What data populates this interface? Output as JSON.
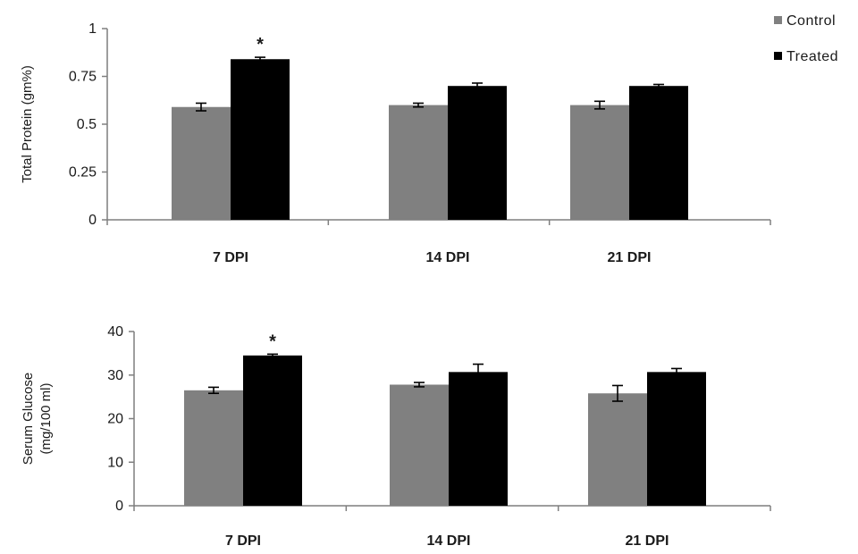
{
  "colors": {
    "control": "#808080",
    "treated": "#000000",
    "axis": "#7f7f7f",
    "error": "#000000"
  },
  "legend": {
    "position": "top-right",
    "items": [
      "Control",
      "Treated"
    ]
  },
  "chart_data": [
    {
      "type": "bar",
      "ylabel": "Total Protein (gm%)",
      "ylabel_lines": [
        "Total Protein (gm%)"
      ],
      "ylim": [
        0,
        1
      ],
      "yticks": [
        0,
        0.25,
        0.5,
        0.75,
        1
      ],
      "ytick_labels": [
        "0",
        "0.25",
        "0.5",
        "0.75",
        "1"
      ],
      "grid": false,
      "categories": [
        "7 DPI",
        "14 DPI",
        "21 DPI"
      ],
      "series": [
        {
          "name": "Control",
          "values": [
            0.59,
            0.6,
            0.6
          ],
          "errors": [
            0.02,
            0.01,
            0.02
          ]
        },
        {
          "name": "Treated",
          "values": [
            0.84,
            0.7,
            0.7
          ],
          "errors": [
            0.01,
            0.015,
            0.008
          ]
        }
      ],
      "annotations": [
        {
          "category": "7 DPI",
          "series": "Treated",
          "text": "*"
        }
      ]
    },
    {
      "type": "bar",
      "ylabel": "Serum Glucose (mg/100 ml)",
      "ylabel_lines": [
        "Serum Glucose",
        "(mg/100 ml)"
      ],
      "ylim": [
        0,
        40
      ],
      "yticks": [
        0,
        10,
        20,
        30,
        40
      ],
      "ytick_labels": [
        "0",
        "10",
        "20",
        "30",
        "40"
      ],
      "grid": false,
      "categories": [
        "7 DPI",
        "14 DPI",
        "21 DPI"
      ],
      "series": [
        {
          "name": "Control",
          "values": [
            26.5,
            27.8,
            25.8
          ],
          "errors": [
            0.7,
            0.5,
            1.8
          ]
        },
        {
          "name": "Treated",
          "values": [
            34.5,
            30.7,
            30.7
          ],
          "errors": [
            0.3,
            1.8,
            0.8
          ]
        }
      ],
      "annotations": [
        {
          "category": "7 DPI",
          "series": "Treated",
          "text": "*"
        }
      ]
    }
  ]
}
